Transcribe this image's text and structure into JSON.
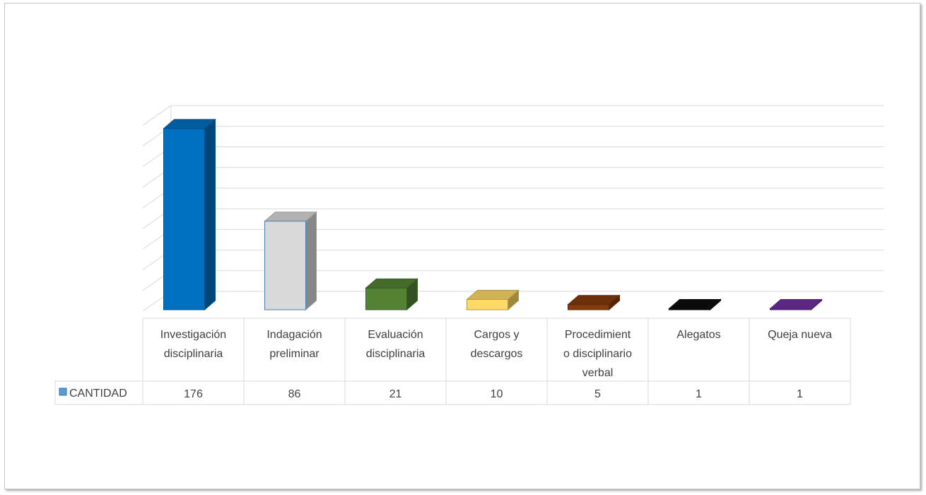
{
  "chart_data": {
    "type": "bar",
    "style": "3d-column-with-data-table",
    "categories": [
      [
        "Investigación",
        "disciplinaria"
      ],
      [
        "Indagación",
        "preliminar"
      ],
      [
        "Evaluación",
        "disciplinaria"
      ],
      [
        "Cargos y",
        "descargos"
      ],
      [
        "Procedimient",
        "o disciplinario",
        "verbal"
      ],
      [
        "Alegatos"
      ],
      [
        "Queja nueva"
      ]
    ],
    "series": [
      {
        "name": "CANTIDAD",
        "values": [
          176,
          86,
          21,
          10,
          5,
          1,
          1
        ],
        "value_labels": [
          "176",
          "86",
          "21",
          "10",
          "5",
          "1",
          "1"
        ]
      }
    ],
    "bar_colors": [
      "#0070C0",
      "#D9D9D9",
      "#548235",
      "#FFD966",
      "#843C0C",
      "#0D0D0D",
      "#7030A0"
    ],
    "legend_color": "#5B9BD5",
    "ylim": [
      0,
      180
    ],
    "grid": true,
    "axis_tick_labels_shown": false,
    "legend": "in-data-table"
  }
}
